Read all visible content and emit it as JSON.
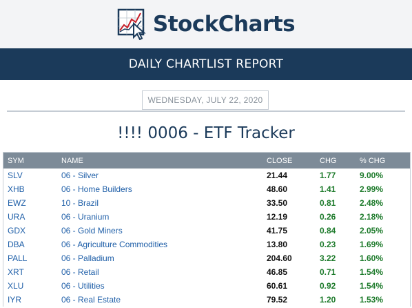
{
  "header": {
    "logo_text": "StockCharts",
    "logo_icon": "chart-cursor-icon"
  },
  "banner": {
    "title": "DAILY CHARTLIST REPORT"
  },
  "date": "WEDNESDAY, JULY 22, 2020",
  "list_title": "!!!! 0006 - ETF Tracker",
  "table": {
    "columns": [
      "SYM",
      "NAME",
      "CLOSE",
      "CHG",
      "% CHG"
    ],
    "rows": [
      {
        "sym": "SLV",
        "name": "06 - Silver",
        "close": "21.44",
        "chg": "1.77",
        "pct": "9.00%"
      },
      {
        "sym": "XHB",
        "name": "06 - Home Builders",
        "close": "48.60",
        "chg": "1.41",
        "pct": "2.99%"
      },
      {
        "sym": "EWZ",
        "name": "10 - Brazil",
        "close": "33.50",
        "chg": "0.81",
        "pct": "2.48%"
      },
      {
        "sym": "URA",
        "name": "06 - Uranium",
        "close": "12.19",
        "chg": "0.26",
        "pct": "2.18%"
      },
      {
        "sym": "GDX",
        "name": "06 - Gold Miners",
        "close": "41.75",
        "chg": "0.84",
        "pct": "2.05%"
      },
      {
        "sym": "DBA",
        "name": "06 - Agriculture Commodities",
        "close": "13.80",
        "chg": "0.23",
        "pct": "1.69%"
      },
      {
        "sym": "PALL",
        "name": "06 - Palladium",
        "close": "204.60",
        "chg": "3.22",
        "pct": "1.60%"
      },
      {
        "sym": "XRT",
        "name": "06 - Retail",
        "close": "46.85",
        "chg": "0.71",
        "pct": "1.54%"
      },
      {
        "sym": "XLU",
        "name": "06 - Utilities",
        "close": "60.61",
        "chg": "0.92",
        "pct": "1.54%"
      },
      {
        "sym": "IYR",
        "name": "06 - Real Estate",
        "close": "79.52",
        "chg": "1.20",
        "pct": "1.53%"
      }
    ]
  },
  "colors": {
    "navy": "#1b3a5a",
    "link_blue": "#1f5fa8",
    "positive_green": "#1c7a2a",
    "table_header": "#7d8b98"
  }
}
